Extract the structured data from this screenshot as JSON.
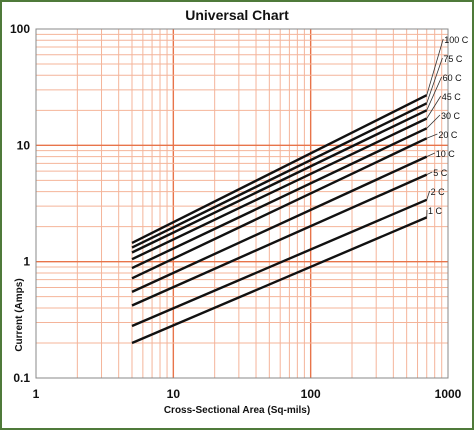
{
  "chart_data": {
    "type": "line",
    "title": "Universal Chart",
    "xlabel": "Cross-Sectional Area (Sq-mils)",
    "ylabel": "Current (Amps)",
    "x_scale": "log",
    "y_scale": "log",
    "xlim": [
      1,
      1000
    ],
    "ylim": [
      0.1,
      100
    ],
    "x_ticks": [
      "1",
      "10",
      "100",
      "1000"
    ],
    "y_ticks": [
      "0.1",
      "1",
      "10",
      "100"
    ],
    "grid": true,
    "colors": {
      "frame": "#4f7a3a",
      "grid_major": "#e8744a",
      "grid_minor": "#f4b49a",
      "line": "#111111"
    },
    "series": [
      {
        "name": "1 C",
        "x": [
          5,
          700
        ],
        "y": [
          0.2,
          2.4
        ]
      },
      {
        "name": "2 C",
        "x": [
          5,
          700
        ],
        "y": [
          0.28,
          3.4
        ]
      },
      {
        "name": "5 C",
        "x": [
          5,
          700
        ],
        "y": [
          0.42,
          5.6
        ]
      },
      {
        "name": "10 C",
        "x": [
          5,
          700
        ],
        "y": [
          0.55,
          8.0
        ]
      },
      {
        "name": "20 C",
        "x": [
          5,
          700
        ],
        "y": [
          0.72,
          11.5
        ]
      },
      {
        "name": "30 C",
        "x": [
          5,
          700
        ],
        "y": [
          0.88,
          14.0
        ]
      },
      {
        "name": "45 C",
        "x": [
          5,
          700
        ],
        "y": [
          1.05,
          17.0
        ]
      },
      {
        "name": "60 C",
        "x": [
          5,
          700
        ],
        "y": [
          1.2,
          20.0
        ]
      },
      {
        "name": "75 C",
        "x": [
          5,
          700
        ],
        "y": [
          1.32,
          23.0
        ]
      },
      {
        "name": "100 C",
        "x": [
          5,
          700
        ],
        "y": [
          1.45,
          27.0
        ]
      }
    ]
  }
}
